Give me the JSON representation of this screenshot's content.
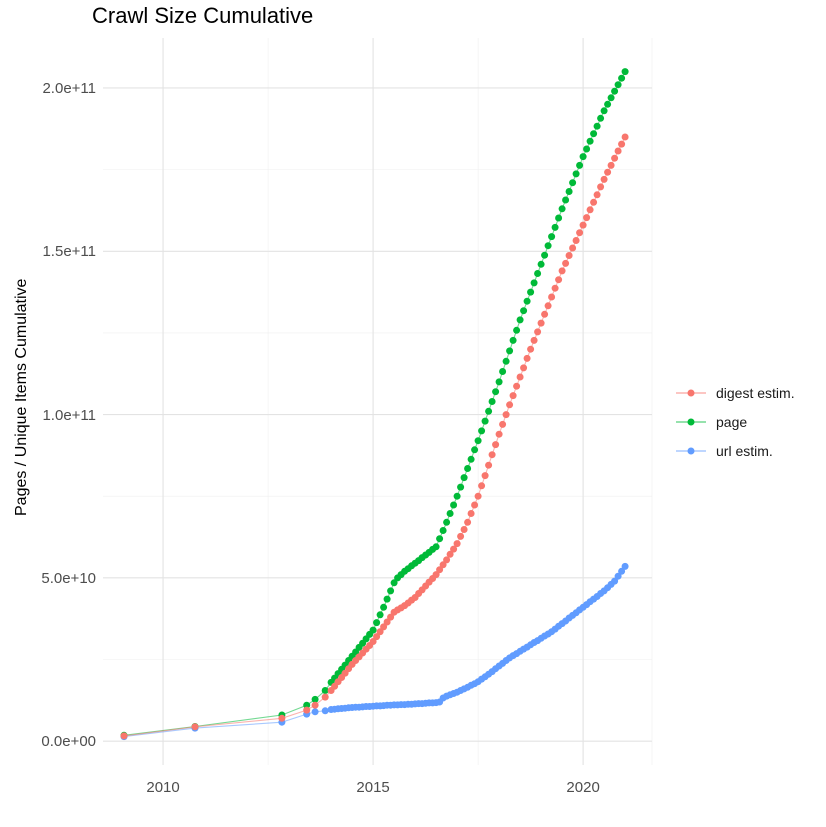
{
  "chart_data": {
    "type": "scatter",
    "title": "Crawl Size Cumulative",
    "xlabel": "",
    "ylabel": "Pages / Unique Items Cumulative",
    "value_unit": "1e9",
    "grid": true,
    "legend_position": "right",
    "x_axis": {
      "lim": [
        2008.57,
        2021.64
      ],
      "ticks": [
        {
          "v": 2010,
          "label": "2010"
        },
        {
          "v": 2015,
          "label": "2015"
        },
        {
          "v": 2020,
          "label": "2020"
        }
      ],
      "minor": [
        2012.5,
        2017.5,
        2021.64
      ]
    },
    "y_axis": {
      "lim": [
        -7.3,
        215.3
      ],
      "ticks": [
        {
          "v": 0,
          "label": "0.0e+00"
        },
        {
          "v": 50,
          "label": "5.0e+10"
        },
        {
          "v": 100,
          "label": "1.0e+11"
        },
        {
          "v": 150,
          "label": "1.5e+11"
        },
        {
          "v": 200,
          "label": "2.0e+11"
        }
      ],
      "minor": [
        25,
        75,
        125,
        175
      ]
    },
    "draw_order": [
      "url estim.",
      "page",
      "digest estim."
    ],
    "series": [
      {
        "name": "digest estim.",
        "color": "#F8766D",
        "sparse": [
          [
            2009.07,
            1.6
          ],
          [
            2010.76,
            4.4
          ],
          [
            2012.83,
            7.0
          ],
          [
            2013.42,
            9.5
          ],
          [
            2013.62,
            11.0
          ],
          [
            2013.86,
            13.5
          ]
        ],
        "monthly_start": 2014.0,
        "monthly": [
          15.5,
          16.8,
          18.2,
          19.5,
          20.8,
          22.2,
          23.5,
          24.7,
          25.8,
          27.0,
          28.2,
          29.3,
          30.5,
          32.0,
          33.5,
          35.0,
          36.5,
          38.0,
          39.5,
          40.2,
          40.8,
          41.5,
          42.3,
          43.2,
          44.0,
          45.2,
          46.3,
          47.5,
          48.7,
          49.8,
          51.0,
          52.5,
          54.0,
          55.5,
          57.2,
          58.8,
          60.5,
          62.7,
          64.8,
          67.0,
          69.7,
          72.3,
          75.0,
          78.2,
          81.3,
          84.5,
          87.7,
          90.8,
          94.0,
          97.0,
          100.0,
          103.0,
          105.8,
          108.7,
          111.5,
          114.3,
          117.2,
          120.0,
          122.7,
          125.3,
          128.0,
          130.7,
          133.3,
          136.0,
          138.7,
          141.3,
          144.0,
          146.3,
          148.7,
          151.0,
          153.3,
          155.7,
          158.0,
          160.3,
          162.7,
          165.0,
          167.3,
          169.7,
          172.0,
          174.2,
          176.3,
          178.5,
          180.7,
          182.8,
          185.0
        ]
      },
      {
        "name": "page",
        "color": "#00BA38",
        "sparse": [
          [
            2009.07,
            1.8
          ],
          [
            2010.76,
            4.5
          ],
          [
            2012.83,
            8.0
          ],
          [
            2013.42,
            11.0
          ],
          [
            2013.62,
            12.8
          ],
          [
            2013.86,
            15.5
          ]
        ],
        "monthly_start": 2014.0,
        "monthly": [
          18.0,
          19.3,
          20.7,
          22.0,
          23.3,
          24.7,
          26.0,
          27.3,
          28.7,
          30.0,
          31.3,
          32.7,
          34.0,
          36.3,
          38.7,
          41.0,
          43.5,
          46.0,
          48.5,
          50.0,
          51.0,
          52.0,
          52.8,
          53.7,
          54.5,
          55.3,
          56.2,
          57.0,
          57.8,
          58.7,
          59.5,
          62.0,
          64.5,
          67.0,
          69.7,
          72.3,
          75.0,
          77.8,
          80.7,
          83.5,
          86.3,
          89.2,
          92.0,
          95.0,
          98.0,
          101.0,
          104.0,
          107.0,
          110.0,
          113.2,
          116.3,
          119.5,
          122.7,
          125.8,
          129.0,
          131.8,
          134.7,
          137.5,
          140.3,
          143.2,
          146.0,
          148.8,
          151.7,
          154.5,
          157.3,
          160.2,
          163.0,
          165.7,
          168.3,
          171.0,
          173.7,
          176.3,
          179.0,
          181.3,
          183.7,
          186.0,
          188.3,
          190.7,
          193.0,
          195.0,
          197.0,
          199.0,
          201.0,
          203.0,
          205.0
        ]
      },
      {
        "name": "url estim.",
        "color": "#619CFF",
        "sparse": [
          [
            2009.07,
            1.4
          ],
          [
            2010.76,
            4.0
          ],
          [
            2012.83,
            5.8
          ],
          [
            2013.42,
            8.3
          ],
          [
            2013.62,
            9.0
          ],
          [
            2013.86,
            9.3
          ]
        ],
        "monthly_start": 2014.0,
        "monthly": [
          9.7,
          9.8,
          9.9,
          10.0,
          10.1,
          10.2,
          10.3,
          10.4,
          10.4,
          10.5,
          10.6,
          10.6,
          10.7,
          10.8,
          10.8,
          10.9,
          11.0,
          11.0,
          11.1,
          11.1,
          11.2,
          11.2,
          11.3,
          11.3,
          11.4,
          11.5,
          11.5,
          11.6,
          11.7,
          11.7,
          11.8,
          12.0,
          13.2,
          13.8,
          14.2,
          14.6,
          15.0,
          15.5,
          16.0,
          16.5,
          17.1,
          17.6,
          18.2,
          19.0,
          19.7,
          20.5,
          21.3,
          22.2,
          23.0,
          23.8,
          24.7,
          25.5,
          26.2,
          26.8,
          27.5,
          28.2,
          28.8,
          29.5,
          30.2,
          30.8,
          31.5,
          32.2,
          32.8,
          33.5,
          34.3,
          35.2,
          36.0,
          36.8,
          37.7,
          38.5,
          39.3,
          40.2,
          41.0,
          41.8,
          42.7,
          43.5,
          44.3,
          45.2,
          46.0,
          47.0,
          48.0,
          49.0,
          50.5,
          52.0,
          53.5
        ]
      }
    ]
  },
  "style": {
    "point_radius": 3.5,
    "line_width": 1.1,
    "line_opacity": 0.55,
    "grid_major_color": "#e3e3e3",
    "grid_minor_color": "#efefef",
    "grid_major_width": 1.1,
    "grid_minor_width": 0.6,
    "tick_text_color": "#4d4d4d",
    "background": "#ffffff"
  }
}
